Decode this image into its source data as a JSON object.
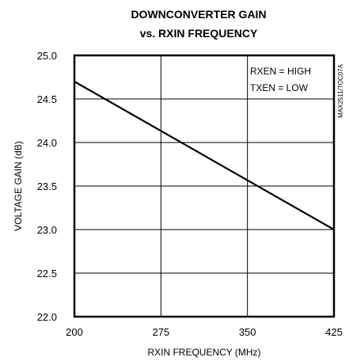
{
  "chart_data": {
    "type": "line",
    "title_line1": "DOWNCONVERTER GAIN",
    "title_line2": "vs. RXIN FREQUENCY",
    "xlabel": "RXIN FREQUENCY (MHz)",
    "ylabel": "VOLTAGE GAIN (dB)",
    "xlim": [
      200,
      425
    ],
    "ylim": [
      22.0,
      25.0
    ],
    "x_ticks": [
      200,
      275,
      350,
      425
    ],
    "x_tick_labels": [
      "200",
      "275",
      "350",
      "425"
    ],
    "y_ticks": [
      22.0,
      22.5,
      23.0,
      23.5,
      24.0,
      24.5,
      25.0
    ],
    "y_tick_labels": [
      "22.0",
      "22.5",
      "23.0",
      "23.5",
      "24.0",
      "24.5",
      "25.0"
    ],
    "grid": true,
    "series": [
      {
        "x": [
          200,
          425
        ],
        "y": [
          24.7,
          23.0
        ]
      }
    ],
    "annotations": [
      "RXEN = HIGH",
      "TXEN = LOW"
    ],
    "side_label": "MAX2511/TOC07A"
  }
}
